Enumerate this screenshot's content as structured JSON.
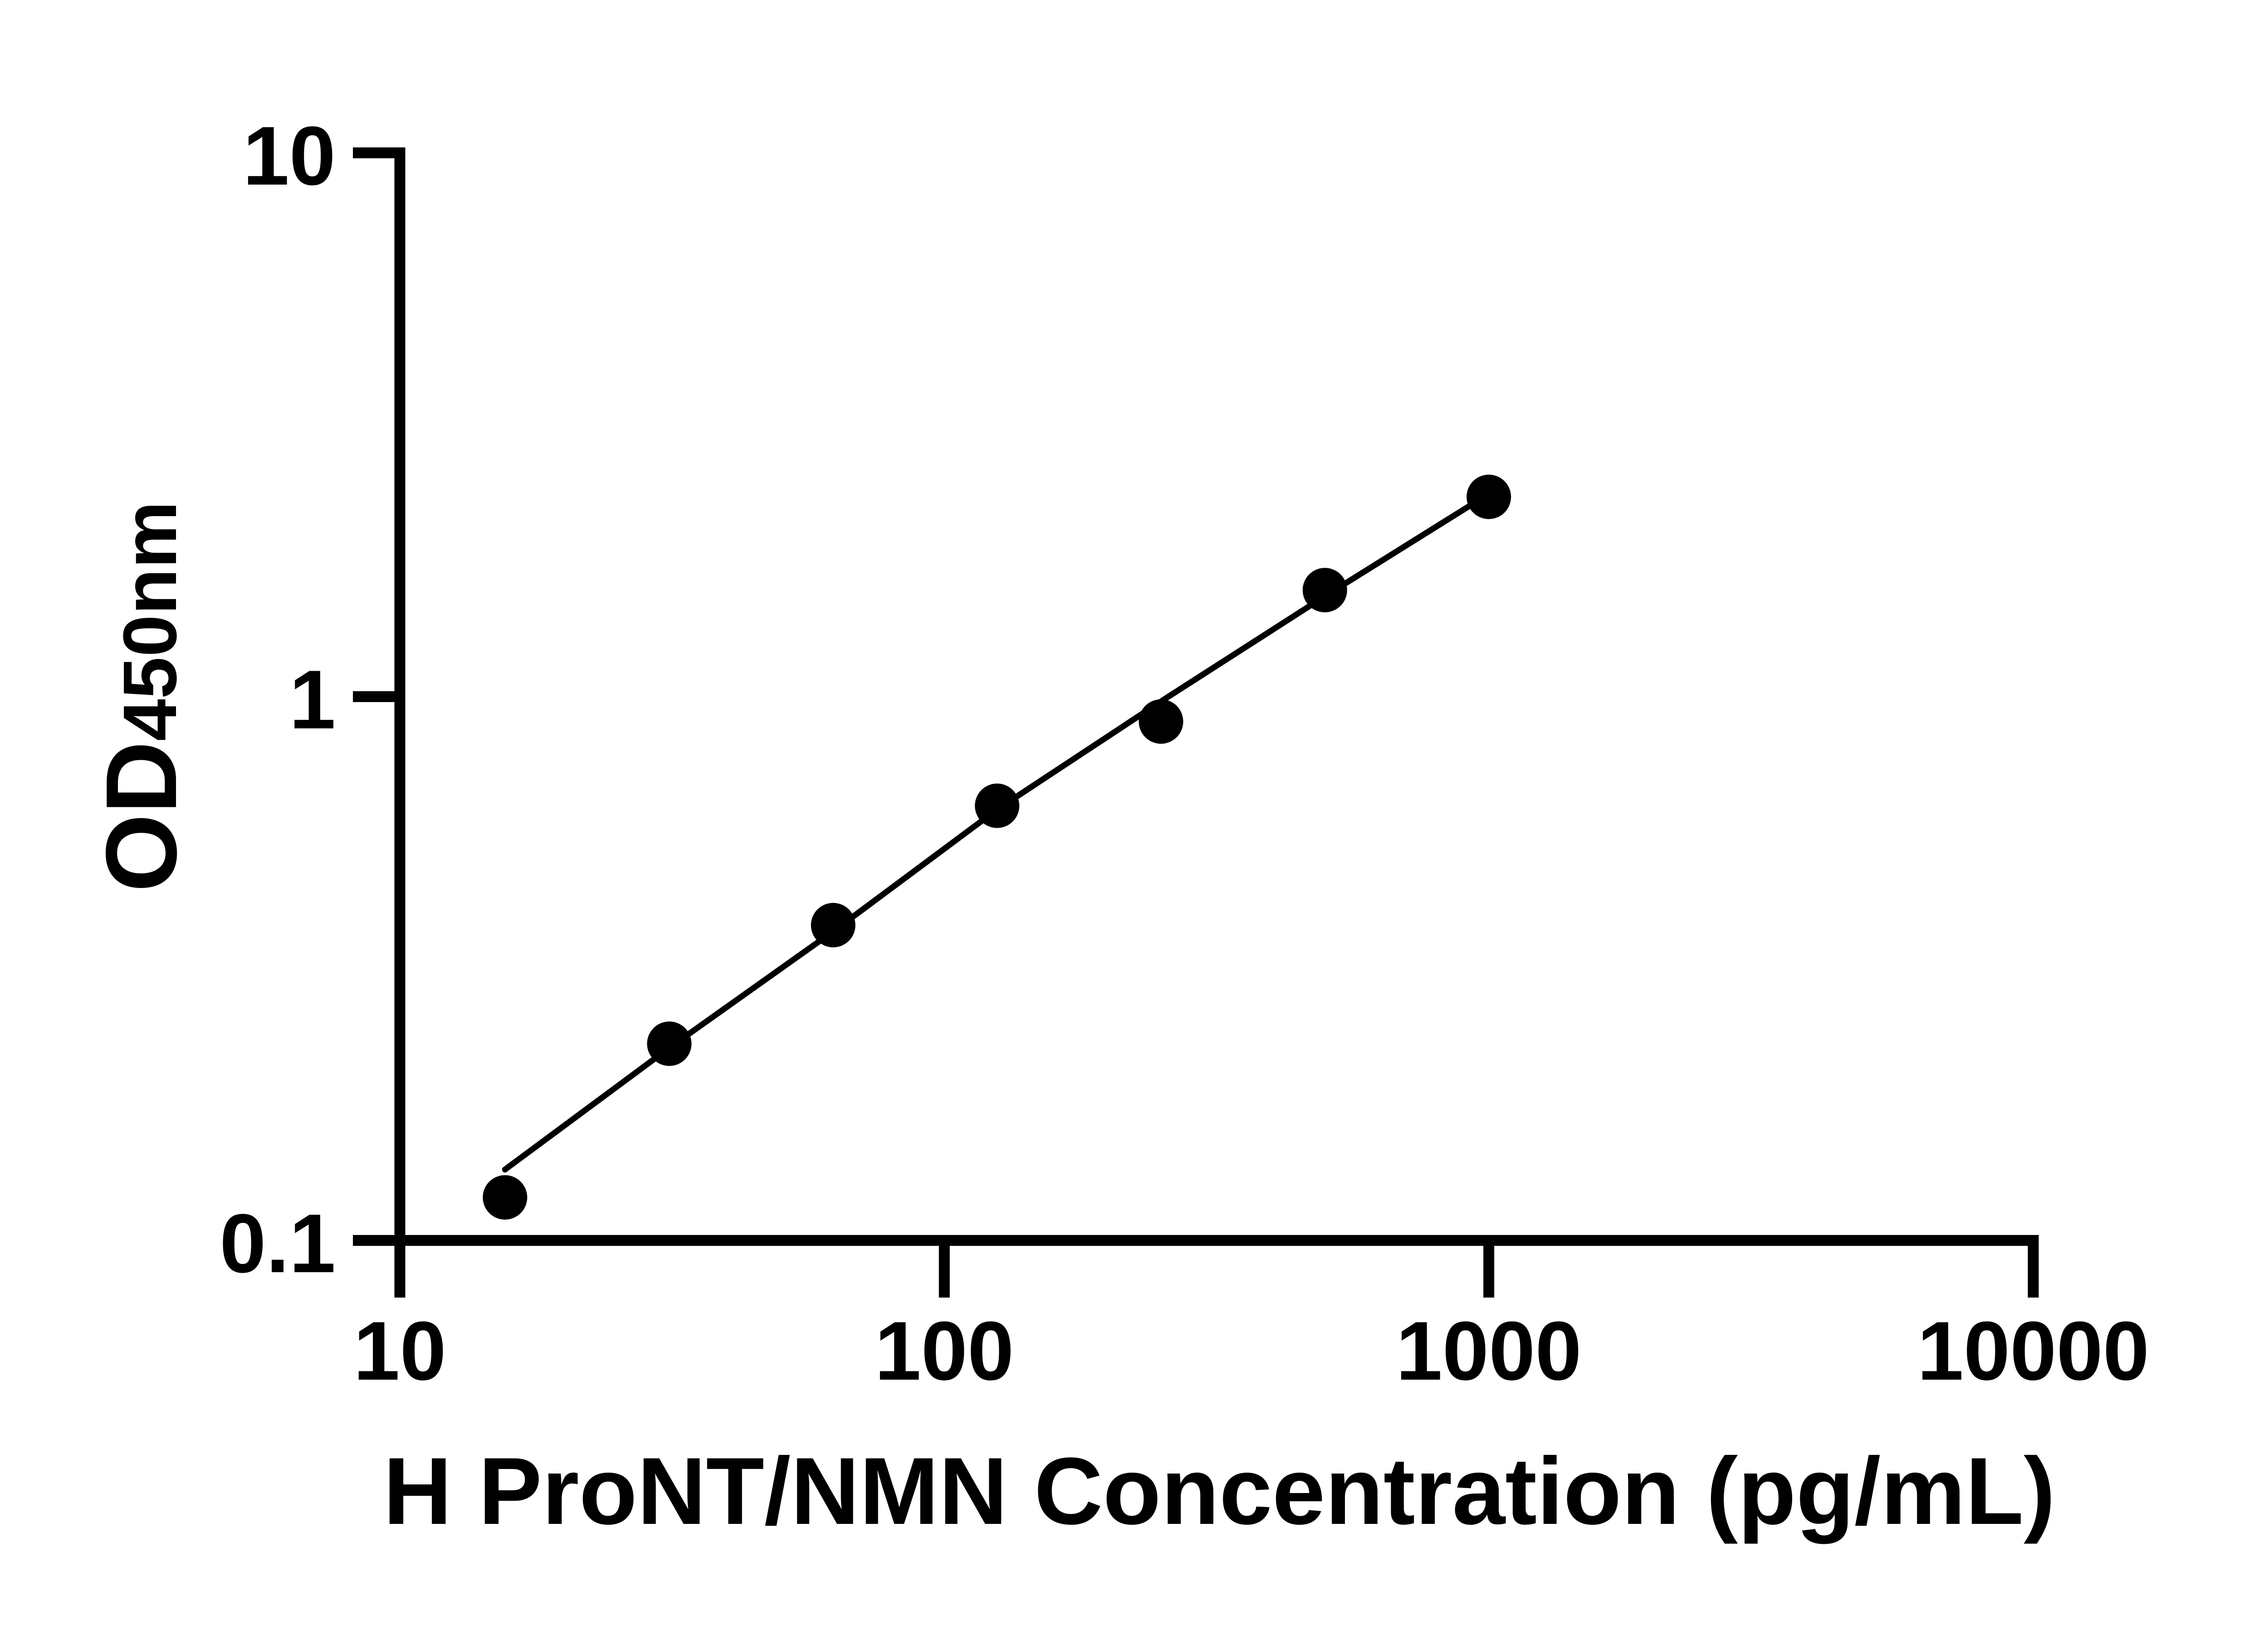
{
  "figure": {
    "background": "#ffffff",
    "ink": "#000000"
  },
  "chart_data": {
    "type": "scatter",
    "title": "",
    "xlabel": "H ProNT/NMN Concentration (pg/mL)",
    "ylabel_main": "OD",
    "ylabel_sub": "450nm",
    "x_scale": "log",
    "y_scale": "log",
    "xlim": [
      10,
      10000
    ],
    "ylim": [
      0.1,
      10
    ],
    "grid": false,
    "legend": null,
    "x_ticks": [
      {
        "value": 10,
        "label": "10"
      },
      {
        "value": 100,
        "label": "100"
      },
      {
        "value": 1000,
        "label": "1000"
      },
      {
        "value": 10000,
        "label": "10000"
      }
    ],
    "y_ticks": [
      {
        "value": 10,
        "label": "10"
      },
      {
        "value": 1,
        "label": "1"
      },
      {
        "value": 0.1,
        "label": "0.1"
      }
    ],
    "series": [
      {
        "name": "standard-points",
        "type": "scatter",
        "marker": "filled-circle",
        "color": "#000000",
        "points": [
          {
            "x": 15.6,
            "y": 0.12
          },
          {
            "x": 31.25,
            "y": 0.23
          },
          {
            "x": 62.5,
            "y": 0.38
          },
          {
            "x": 125,
            "y": 0.63
          },
          {
            "x": 250,
            "y": 0.9
          },
          {
            "x": 500,
            "y": 1.57
          },
          {
            "x": 1000,
            "y": 2.33
          }
        ]
      },
      {
        "name": "fit-line",
        "type": "line",
        "color": "#000000",
        "points": [
          {
            "x": 15.6,
            "y": 0.135
          },
          {
            "x": 31.25,
            "y": 0.226
          },
          {
            "x": 62.5,
            "y": 0.37
          },
          {
            "x": 125,
            "y": 0.62
          },
          {
            "x": 250,
            "y": 0.98
          },
          {
            "x": 500,
            "y": 1.53
          },
          {
            "x": 1000,
            "y": 2.36
          }
        ]
      }
    ]
  }
}
